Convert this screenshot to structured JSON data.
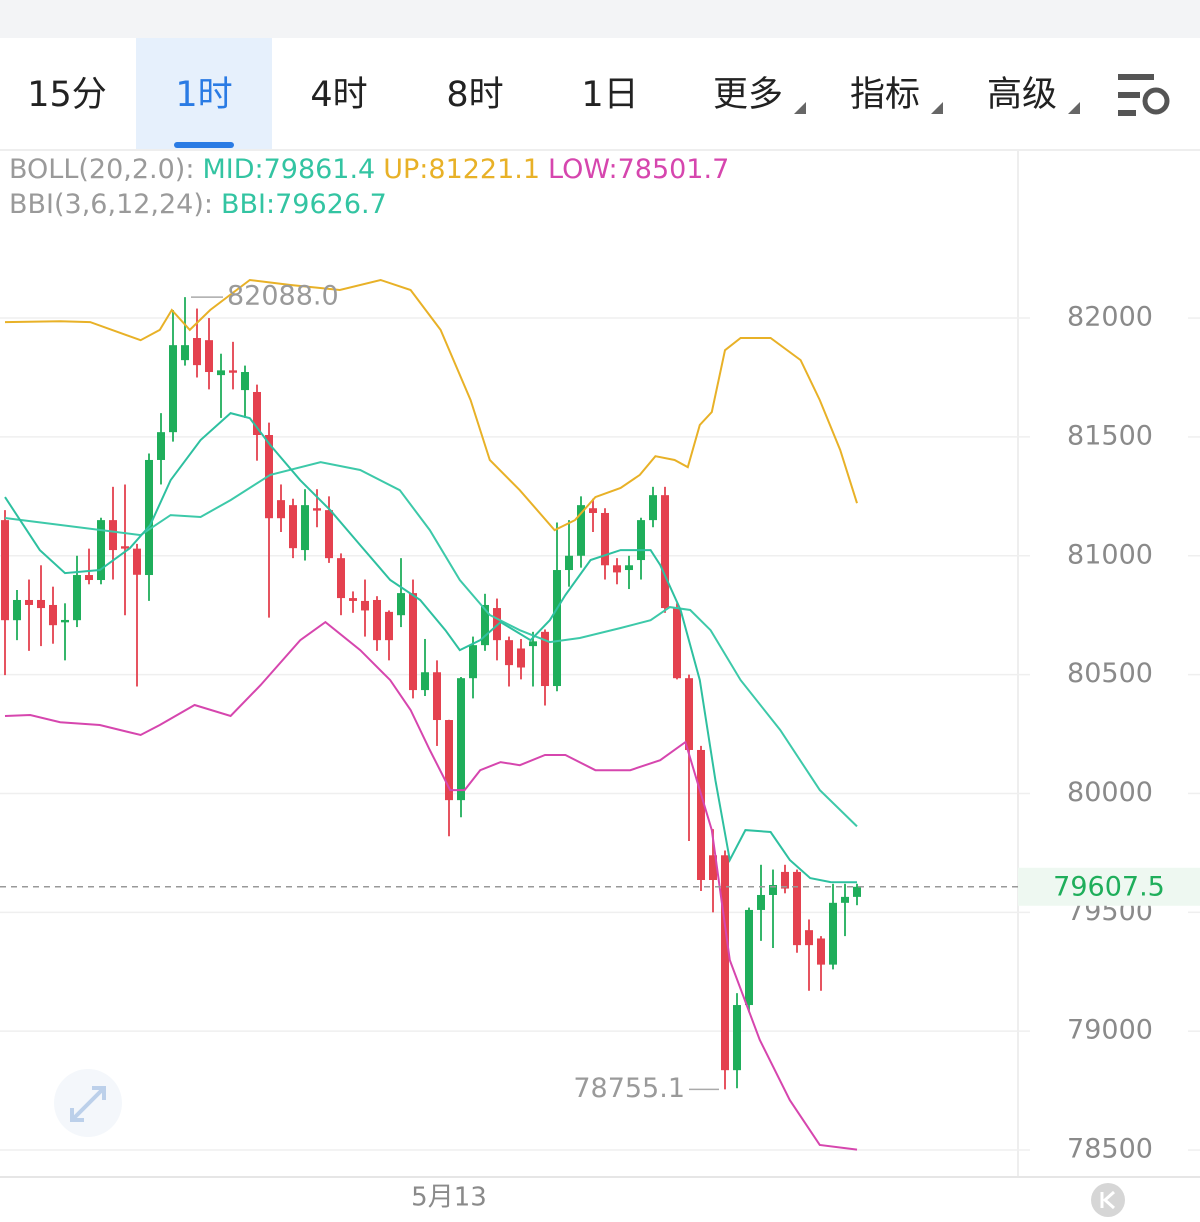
{
  "tabs": [
    "15分",
    "1时",
    "4时",
    "8时",
    "1日",
    "更多",
    "指标",
    "高级"
  ],
  "selected_tab": 1,
  "chart_data": {
    "type": "candlestick",
    "legend": [
      [
        {
          "text": "BOLL(20,2.0):",
          "color": "#9a9a9a"
        },
        {
          "text": "MID:79861.4",
          "color": "#33c4a2"
        },
        {
          "text": "UP:81221.1",
          "color": "#e8b127"
        },
        {
          "text": "LOW:78501.7",
          "color": "#d646ae"
        }
      ],
      [
        {
          "text": "BBI(3,6,12,24):",
          "color": "#9a9a9a"
        },
        {
          "text": "BBI:79626.7",
          "color": "#33c4a2"
        }
      ]
    ],
    "categories": [
      null,
      null,
      null,
      null,
      null,
      null,
      null,
      null,
      null,
      null,
      null,
      null,
      null,
      null,
      null,
      null,
      null,
      null,
      null,
      null,
      null,
      null,
      null,
      null,
      null,
      null,
      null,
      null,
      null,
      null,
      null,
      null,
      null,
      null,
      null,
      null,
      null,
      "5月13",
      null,
      null,
      null,
      null,
      null,
      null,
      null,
      null,
      null,
      null,
      null,
      null,
      null,
      null,
      null,
      null,
      null,
      null,
      null,
      null,
      null,
      null,
      null,
      null,
      null,
      null,
      null,
      null,
      null,
      null,
      null,
      null,
      null,
      null
    ],
    "candles": {
      "up_color": "#1fae5b",
      "down_color": "#e4414f",
      "open": [
        81150,
        80729,
        80814,
        80814,
        80793,
        80720,
        80729,
        80919,
        80898,
        81150,
        81040,
        81030,
        80919,
        81403,
        81520,
        81823,
        81916,
        81907,
        81760,
        81780,
        81697,
        81689,
        81508,
        81234,
        81213,
        81024,
        81200,
        81192,
        80990,
        80822,
        80810,
        80814,
        80764,
        80750,
        80843,
        80435,
        80510,
        80309,
        79972,
        80485,
        80624,
        80780,
        80645,
        80610,
        80620,
        80680,
        80452,
        80940,
        81000,
        81200,
        81180,
        80960,
        80940,
        80982,
        81150,
        81255,
        80780,
        80485,
        80183,
        79740,
        79740,
        78836,
        79110,
        79510,
        79573,
        79670,
        79670,
        79425,
        79390,
        79280,
        79540,
        79565
      ],
      "high": [
        81192,
        80856,
        80900,
        80960,
        80870,
        80800,
        81000,
        81030,
        81160,
        81290,
        81300,
        81050,
        81430,
        81600,
        82034,
        82088,
        82040,
        82000,
        81850,
        81900,
        81800,
        81720,
        81560,
        81300,
        81240,
        81280,
        81280,
        81250,
        81010,
        80850,
        80900,
        80830,
        80770,
        80990,
        80900,
        80650,
        80560,
        80310,
        80490,
        80660,
        80840,
        80820,
        80660,
        80650,
        80680,
        80690,
        81140,
        81150,
        81250,
        81240,
        81200,
        80990,
        81000,
        81160,
        81290,
        81290,
        80800,
        80500,
        80200,
        79850,
        79760,
        79160,
        79520,
        79700,
        79680,
        79700,
        79680,
        79470,
        79400,
        79620,
        79620,
        79620
      ],
      "low": [
        80498,
        80645,
        80600,
        80620,
        80630,
        80560,
        80700,
        80880,
        80880,
        80900,
        80750,
        80450,
        80810,
        81300,
        81480,
        81800,
        81750,
        81700,
        81580,
        81700,
        81580,
        81400,
        80740,
        81100,
        80990,
        80980,
        81120,
        80970,
        80750,
        80760,
        80660,
        80600,
        80560,
        80700,
        80400,
        80410,
        80200,
        79820,
        79900,
        80400,
        80600,
        80560,
        80450,
        80480,
        80450,
        80370,
        80430,
        80870,
        80950,
        81100,
        80900,
        80880,
        80860,
        80900,
        81120,
        80760,
        80480,
        79800,
        79590,
        79500,
        78755.1,
        78760,
        79080,
        79380,
        79350,
        79580,
        79330,
        79170,
        79170,
        79260,
        79400,
        79530
      ],
      "close": [
        80729,
        80814,
        80793,
        80780,
        80708,
        80730,
        80919,
        80898,
        81150,
        81024,
        81030,
        80920,
        81403,
        81520,
        81886,
        81886,
        81802,
        81773,
        81780,
        81770,
        81773,
        81508,
        81158,
        81158,
        81032,
        81213,
        81190,
        80990,
        80822,
        80810,
        80770,
        80645,
        80645,
        80843,
        80435,
        80510,
        80309,
        79972,
        80485,
        80624,
        80793,
        80645,
        80540,
        80530,
        80640,
        80452,
        80940,
        81000,
        81213,
        81180,
        80960,
        80930,
        80960,
        81150,
        81255,
        80780,
        80485,
        80183,
        79636,
        79636,
        78836,
        79110,
        79510,
        79573,
        79615,
        79600,
        79362,
        79362,
        79280,
        79540,
        79565,
        79607.5
      ]
    },
    "series": [
      {
        "name": "UP",
        "color": "#e8b127",
        "x": [
          0,
          4.6,
          7.1,
          11.3,
          12.9,
          13.9,
          15.4,
          17.1,
          20.4,
          23.8,
          27.9,
          31.3,
          33.8,
          36.3,
          38.8,
          40.4,
          42.9,
          45.8,
          47.5,
          49.2,
          51.3,
          52.9,
          54.2,
          55.8,
          56.9,
          57.9,
          58.9,
          60,
          61.3,
          63.8,
          66.3,
          67.9,
          69.6,
          71
        ],
        "values": [
          81983,
          81987,
          81983,
          81907,
          81950,
          82034,
          81950,
          82034,
          82160,
          82139,
          82118,
          82160,
          82118,
          81950,
          81655,
          81403,
          81276,
          81108,
          81150,
          81247,
          81285,
          81340,
          81419,
          81403,
          81373,
          81550,
          81605,
          81865,
          81916,
          81916,
          81823,
          81655,
          81445,
          81221.1
        ]
      },
      {
        "name": "MID",
        "color": "#3dc9a9",
        "x": [
          0,
          11.3,
          13.8,
          16.3,
          18.8,
          22.1,
          26.3,
          29.6,
          32.9,
          35.4,
          37.9,
          40.4,
          42.9,
          45.4,
          47.9,
          51.3,
          53.8,
          55.4,
          57.1,
          58.8,
          61.3,
          64.6,
          67.9,
          71
        ],
        "values": [
          81159,
          81087,
          81171,
          81163,
          81234,
          81340,
          81394,
          81361,
          81276,
          81108,
          80898,
          80751,
          80687,
          80637,
          80654,
          80696,
          80729,
          80784,
          80772,
          80687,
          80477,
          80267,
          80014,
          79861.4
        ]
      },
      {
        "name": "BBI",
        "color": "#2ec0a0",
        "x": [
          0,
          2.9,
          5,
          7.9,
          10.4,
          12.1,
          13.8,
          16.3,
          18.8,
          20.4,
          22.1,
          24.6,
          27.1,
          29.6,
          32.1,
          34.6,
          36.7,
          37.9,
          39.6,
          41.3,
          43.8,
          45.4,
          46.7,
          48.8,
          51.3,
          53.8,
          54.6,
          56.3,
          57.9,
          59.2,
          60.4,
          61.7,
          63.8,
          65.4,
          67.1,
          68.8,
          71
        ],
        "values": [
          81247,
          81024,
          80927,
          80940,
          81032,
          81129,
          81318,
          81487,
          81600,
          81579,
          81466,
          81318,
          81192,
          81045,
          80898,
          80814,
          80687,
          80603,
          80645,
          80721,
          80645,
          80729,
          80835,
          80982,
          81024,
          81024,
          80961,
          80772,
          80477,
          80056,
          79720,
          79846,
          79838,
          79720,
          79644,
          79627,
          79626.7
        ]
      },
      {
        "name": "LOW",
        "color": "#d646ae",
        "x": [
          0,
          2.1,
          4.6,
          7.9,
          11.3,
          12.9,
          15.8,
          18.8,
          21.3,
          24.6,
          26.7,
          29.6,
          32.1,
          33.8,
          35.4,
          37.1,
          38.3,
          39.6,
          41.3,
          42.9,
          45,
          46.7,
          49.2,
          52.1,
          54.6,
          56.7,
          57.9,
          58.9,
          60.4,
          62.9,
          65.4,
          67.9,
          71
        ],
        "values": [
          80326,
          80330,
          80300,
          80288,
          80246,
          80288,
          80372,
          80326,
          80456,
          80645,
          80721,
          80603,
          80477,
          80351,
          80183,
          80014,
          80014,
          80098,
          80132,
          80119,
          80162,
          80162,
          80098,
          80098,
          80140,
          80216,
          80014,
          79846,
          79299,
          78963,
          78710,
          78521,
          78501.7
        ]
      }
    ],
    "annotations": [
      {
        "index": 15,
        "value": 82088,
        "label": "82088.0",
        "side": "right"
      },
      {
        "index": 60,
        "value": 78755.1,
        "label": "78755.1",
        "side": "left"
      }
    ],
    "current_price": {
      "value": 79607.5,
      "label": "79607.5",
      "color": "#1fae5b"
    },
    "ylim": [
      78395,
      82707
    ],
    "yticks": [
      78500,
      79000,
      79500,
      80000,
      80500,
      81000,
      81500,
      82000
    ],
    "grid": true
  }
}
